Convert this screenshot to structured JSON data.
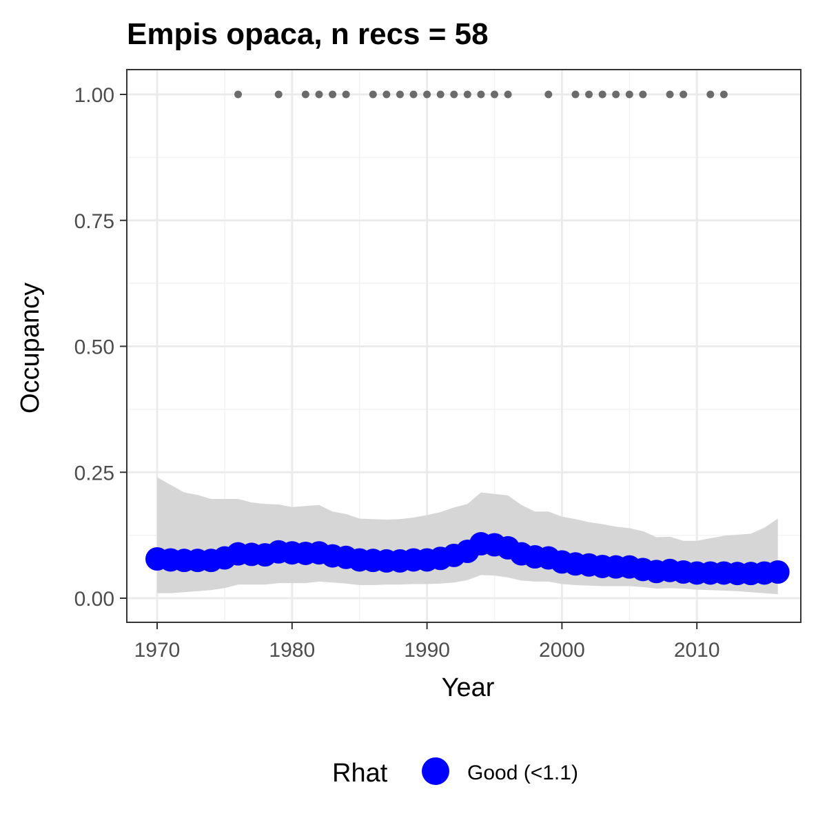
{
  "chart_data": {
    "type": "line",
    "title": "Empis opaca, n recs = 58",
    "xlabel": "Year",
    "ylabel": "Occupancy",
    "xlim": [
      1967.8,
      1917.6
    ],
    "x_ticks": [
      1970,
      1980,
      1990,
      2000,
      2010
    ],
    "x_tick_labels": [
      "1970",
      "1980",
      "1990",
      "2000",
      "2010"
    ],
    "y_ticks": [
      0.0,
      0.25,
      0.5,
      0.75,
      1.0
    ],
    "y_tick_labels": [
      "0.00",
      "0.25",
      "0.50",
      "0.75",
      "1.00"
    ],
    "ylim": [
      -0.046,
      1.05
    ],
    "grid": true,
    "legend_position": "bottom",
    "legend": {
      "title": "Rhat",
      "entries": [
        {
          "label": "Good (<1.1)",
          "color": "#0000ff"
        }
      ]
    },
    "series": [
      {
        "name": "Good (<1.1)",
        "color": "#0000ff",
        "x": [
          1970,
          1971,
          1972,
          1973,
          1974,
          1975,
          1976,
          1977,
          1978,
          1979,
          1980,
          1981,
          1982,
          1983,
          1984,
          1985,
          1986,
          1987,
          1988,
          1989,
          1990,
          1991,
          1992,
          1993,
          1994,
          1995,
          1996,
          1997,
          1998,
          1999,
          2000,
          2001,
          2002,
          2003,
          2004,
          2005,
          2006,
          2007,
          2008,
          2009,
          2010,
          2011,
          2012,
          2013,
          2014,
          2015,
          2016
        ],
        "values": [
          0.078,
          0.076,
          0.075,
          0.075,
          0.075,
          0.08,
          0.088,
          0.087,
          0.086,
          0.092,
          0.09,
          0.089,
          0.09,
          0.084,
          0.081,
          0.076,
          0.075,
          0.074,
          0.074,
          0.076,
          0.076,
          0.079,
          0.085,
          0.093,
          0.108,
          0.106,
          0.1,
          0.088,
          0.082,
          0.08,
          0.072,
          0.068,
          0.066,
          0.063,
          0.062,
          0.062,
          0.057,
          0.053,
          0.055,
          0.052,
          0.05,
          0.05,
          0.05,
          0.049,
          0.049,
          0.05,
          0.052
        ],
        "lower": [
          0.01,
          0.01,
          0.012,
          0.014,
          0.016,
          0.02,
          0.027,
          0.027,
          0.027,
          0.03,
          0.03,
          0.03,
          0.033,
          0.031,
          0.029,
          0.026,
          0.026,
          0.027,
          0.027,
          0.028,
          0.028,
          0.029,
          0.031,
          0.036,
          0.046,
          0.045,
          0.041,
          0.035,
          0.033,
          0.033,
          0.028,
          0.026,
          0.025,
          0.024,
          0.024,
          0.024,
          0.022,
          0.019,
          0.02,
          0.019,
          0.017,
          0.016,
          0.015,
          0.014,
          0.012,
          0.01,
          0.008
        ]
      }
    ],
    "uncertainty_band": {
      "x": [
        1970,
        1971,
        1972,
        1973,
        1974,
        1975,
        1976,
        1977,
        1978,
        1979,
        1980,
        1981,
        1982,
        1983,
        1984,
        1985,
        1986,
        1987,
        1988,
        1989,
        1990,
        1991,
        1992,
        1993,
        1994,
        1995,
        1996,
        1997,
        1998,
        1999,
        2000,
        2001,
        2002,
        2003,
        2004,
        2005,
        2006,
        2007,
        2008,
        2009,
        2010,
        2011,
        2012,
        2013,
        2014,
        2015,
        2016
      ],
      "lower": [
        0.01,
        0.01,
        0.012,
        0.014,
        0.016,
        0.02,
        0.027,
        0.027,
        0.027,
        0.03,
        0.03,
        0.03,
        0.033,
        0.031,
        0.029,
        0.026,
        0.026,
        0.027,
        0.027,
        0.028,
        0.028,
        0.029,
        0.031,
        0.036,
        0.046,
        0.045,
        0.041,
        0.035,
        0.033,
        0.033,
        0.028,
        0.026,
        0.025,
        0.024,
        0.024,
        0.024,
        0.022,
        0.019,
        0.02,
        0.019,
        0.017,
        0.016,
        0.015,
        0.014,
        0.012,
        0.01,
        0.008
      ],
      "upper": [
        0.24,
        0.225,
        0.21,
        0.205,
        0.197,
        0.197,
        0.197,
        0.19,
        0.187,
        0.186,
        0.181,
        0.183,
        0.185,
        0.172,
        0.167,
        0.158,
        0.157,
        0.156,
        0.157,
        0.16,
        0.165,
        0.171,
        0.18,
        0.187,
        0.21,
        0.207,
        0.204,
        0.185,
        0.172,
        0.172,
        0.162,
        0.157,
        0.151,
        0.147,
        0.142,
        0.139,
        0.133,
        0.121,
        0.122,
        0.114,
        0.114,
        0.119,
        0.124,
        0.126,
        0.128,
        0.14,
        0.158
      ],
      "color": "#d6d6d6"
    },
    "detections": {
      "color": "#6b6b6b",
      "y": 1.0,
      "x": [
        1976,
        1979,
        1981,
        1982,
        1983,
        1984,
        1986,
        1987,
        1988,
        1989,
        1990,
        1991,
        1992,
        1993,
        1994,
        1995,
        1996,
        1999,
        2001,
        2002,
        2003,
        2004,
        2005,
        2006,
        2008,
        2009,
        2011,
        2012
      ]
    }
  }
}
